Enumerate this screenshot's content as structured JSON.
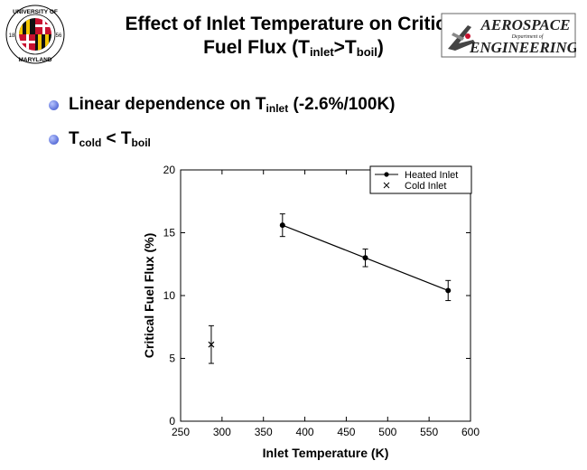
{
  "header": {
    "title_line1": "Effect of Inlet Temperature on Critical",
    "title_line2_pre": "Fuel Flux (T",
    "title_sub1": "inlet",
    "title_mid": ">T",
    "title_sub2": "boil",
    "title_post": ")"
  },
  "logos": {
    "left_text_top": "UNIVERSITY OF",
    "left_text_bottom": "MARYLAND",
    "left_year_left": "18",
    "left_year_right": "56",
    "right_line1": "AEROSPACE",
    "right_line2": "Department of",
    "right_line3": "ENGINEERING"
  },
  "bullets": [
    {
      "pre": "Linear dependence on T",
      "sub": "inlet",
      "post": " (-2.6%/100K)"
    },
    {
      "pre": "T",
      "sub": "cold",
      "mid": " < T",
      "sub2": "boil"
    }
  ],
  "colors": {
    "bullet": "#5a6fd8",
    "mark": "#000000",
    "umd_red": "#c8102e",
    "umd_gold": "#f2c400"
  },
  "chart_data": {
    "type": "scatter",
    "xlabel": "Inlet Temperature (K)",
    "ylabel": "Critical Fuel Flux (%)",
    "xlim": [
      250,
      600
    ],
    "ylim": [
      0,
      20
    ],
    "xticks": [
      250,
      300,
      350,
      400,
      450,
      500,
      550,
      600
    ],
    "yticks": [
      0,
      5,
      10,
      15,
      20
    ],
    "grid": false,
    "legend_position": "top-right",
    "series": [
      {
        "name": "Heated Inlet",
        "marker": "circle",
        "line": true,
        "x": [
          373,
          473,
          573
        ],
        "y": [
          15.6,
          13.0,
          10.4
        ],
        "err": [
          0.9,
          0.7,
          0.8
        ]
      },
      {
        "name": "Cold Inlet",
        "marker": "x",
        "line": false,
        "x": [
          287
        ],
        "y": [
          6.1
        ],
        "err": [
          1.5
        ]
      }
    ]
  }
}
